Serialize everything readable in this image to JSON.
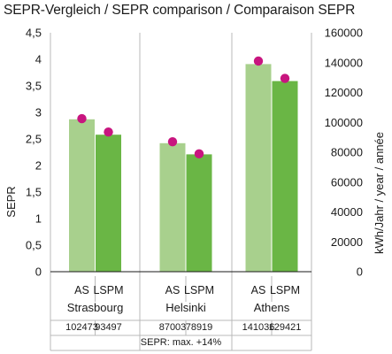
{
  "chart_data": {
    "type": "bar",
    "title": "SEPR-Vergleich / SEPR comparison / Comparaison SEPR",
    "ylabel": "SEPR",
    "y2label": "kWh/Jahr / year / année",
    "ylim": [
      0,
      4.5
    ],
    "yticks": [
      "0",
      "0,5",
      "1",
      "1,5",
      "2",
      "2,5",
      "3",
      "3,5",
      "4",
      "4,5"
    ],
    "y2lim": [
      0,
      160000
    ],
    "y2ticks": [
      "0",
      "20000",
      "40000",
      "60000",
      "80000",
      "100000",
      "120000",
      "140000",
      "160000"
    ],
    "grid": "vertical",
    "categories": [
      "Strasbourg",
      "Helsinki",
      "Athens"
    ],
    "bar_labels": [
      "AS",
      "LSPM"
    ],
    "series": [
      {
        "name": "AS",
        "values": [
          2.87,
          2.42,
          3.91
        ],
        "color": "#a8d08d"
      },
      {
        "name": "LSPM",
        "values": [
          2.58,
          2.21,
          3.59
        ],
        "color": "#6ab645"
      }
    ],
    "energy": {
      "axis": "secondary",
      "color": "#c8157f",
      "marker": "dot",
      "values": [
        [
          102473,
          93497
        ],
        [
          87003,
          78919
        ],
        [
          141036,
          129421
        ]
      ],
      "labels": [
        [
          "102473",
          "93497"
        ],
        [
          "87003",
          "78919"
        ],
        [
          "141036",
          "129421"
        ]
      ]
    },
    "footnote": "SEPR: max. +14%"
  }
}
